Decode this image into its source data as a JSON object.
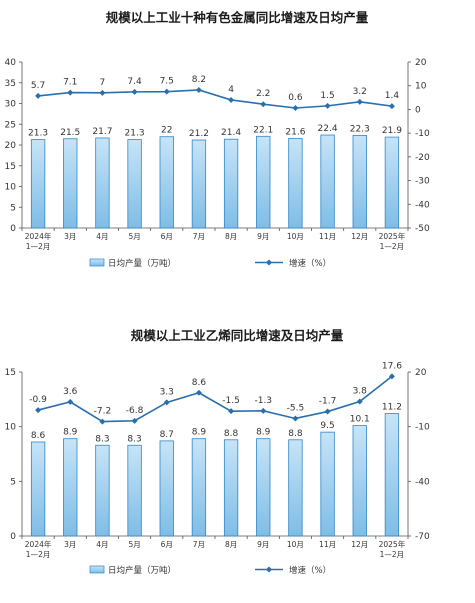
{
  "chart_data": [
    {
      "type": "bar+line",
      "title": "规模以上工业十种有色金属同比增速及日均产量",
      "categories": [
        [
          "2024年",
          "1—2月"
        ],
        [
          "3月"
        ],
        [
          "4月"
        ],
        [
          "5月"
        ],
        [
          "6月"
        ],
        [
          "7月"
        ],
        [
          "8月"
        ],
        [
          "9月"
        ],
        [
          "10月"
        ],
        [
          "11月"
        ],
        [
          "12月"
        ],
        [
          "2025年",
          "1—2月"
        ]
      ],
      "series": [
        {
          "name": "日均产量（万吨）",
          "type": "bar",
          "axis": "left",
          "values": [
            21.3,
            21.5,
            21.7,
            21.3,
            22.0,
            21.2,
            21.4,
            22.1,
            21.6,
            22.4,
            22.3,
            21.9
          ]
        },
        {
          "name": "增速（%）",
          "type": "line",
          "axis": "right",
          "values": [
            5.7,
            7.1,
            7.0,
            7.4,
            7.5,
            8.2,
            4.0,
            2.2,
            0.6,
            1.5,
            3.2,
            1.4
          ]
        }
      ],
      "ylim_left": [
        0,
        40
      ],
      "yticks_left": [
        "0",
        "5",
        "10",
        "15",
        "20",
        "25",
        "30",
        "35",
        "40"
      ],
      "ylim_right": [
        -50,
        20
      ],
      "yticks_right": [
        "-50",
        "-40",
        "-30",
        "-20",
        "-10",
        "0",
        "10",
        "20"
      ],
      "legend_position": "bottom"
    },
    {
      "type": "bar+line",
      "title": "规模以上工业乙烯同比增速及日均产量",
      "categories": [
        [
          "2024年",
          "1—2月"
        ],
        [
          "3月"
        ],
        [
          "4月"
        ],
        [
          "5月"
        ],
        [
          "6月"
        ],
        [
          "7月"
        ],
        [
          "8月"
        ],
        [
          "9月"
        ],
        [
          "10月"
        ],
        [
          "11月"
        ],
        [
          "12月"
        ],
        [
          "2025年",
          "1—2月"
        ]
      ],
      "series": [
        {
          "name": "日均产量（万吨）",
          "type": "bar",
          "axis": "left",
          "values": [
            8.6,
            8.9,
            8.3,
            8.3,
            8.7,
            8.9,
            8.8,
            8.9,
            8.8,
            9.5,
            10.1,
            11.2
          ]
        },
        {
          "name": "增速（%）",
          "type": "line",
          "axis": "right",
          "values": [
            -0.9,
            3.6,
            -7.2,
            -6.8,
            3.3,
            8.6,
            -1.5,
            -1.3,
            -5.5,
            -1.7,
            3.8,
            17.6
          ]
        }
      ],
      "ylim_left": [
        0,
        15
      ],
      "yticks_left": [
        "0",
        "5",
        "10",
        "15"
      ],
      "ylim_right": [
        -70,
        20
      ],
      "yticks_right": [
        "-70",
        "-40",
        "-10",
        "20"
      ],
      "legend_position": "bottom"
    }
  ],
  "colors": {
    "bar_fill_top": "#c6e4f7",
    "bar_fill_bottom": "#7fbde6",
    "bar_stroke": "#2f86c8",
    "line": "#2a6fad",
    "axis": "#555555"
  }
}
